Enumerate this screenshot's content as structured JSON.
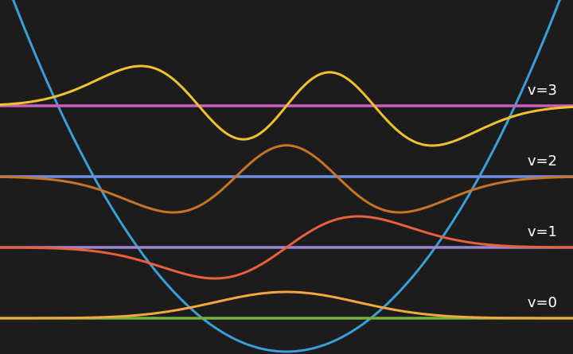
{
  "potential": {
    "color": "#3a9fd8",
    "shape": "parabola",
    "vertex_level": 0
  },
  "levels": [
    {
      "label": "v=0",
      "n": 0,
      "line_color": "#74b43c",
      "wave_color": "#f2a93a"
    },
    {
      "label": "v=1",
      "n": 1,
      "line_color": "#9b86d4",
      "wave_color": "#e8603c"
    },
    {
      "label": "v=2",
      "n": 2,
      "line_color": "#6f8fe0",
      "wave_color": "#c87428"
    },
    {
      "label": "v=3",
      "n": 3,
      "line_color": "#cc5ec0",
      "wave_color": "#f2c12e"
    }
  ]
}
